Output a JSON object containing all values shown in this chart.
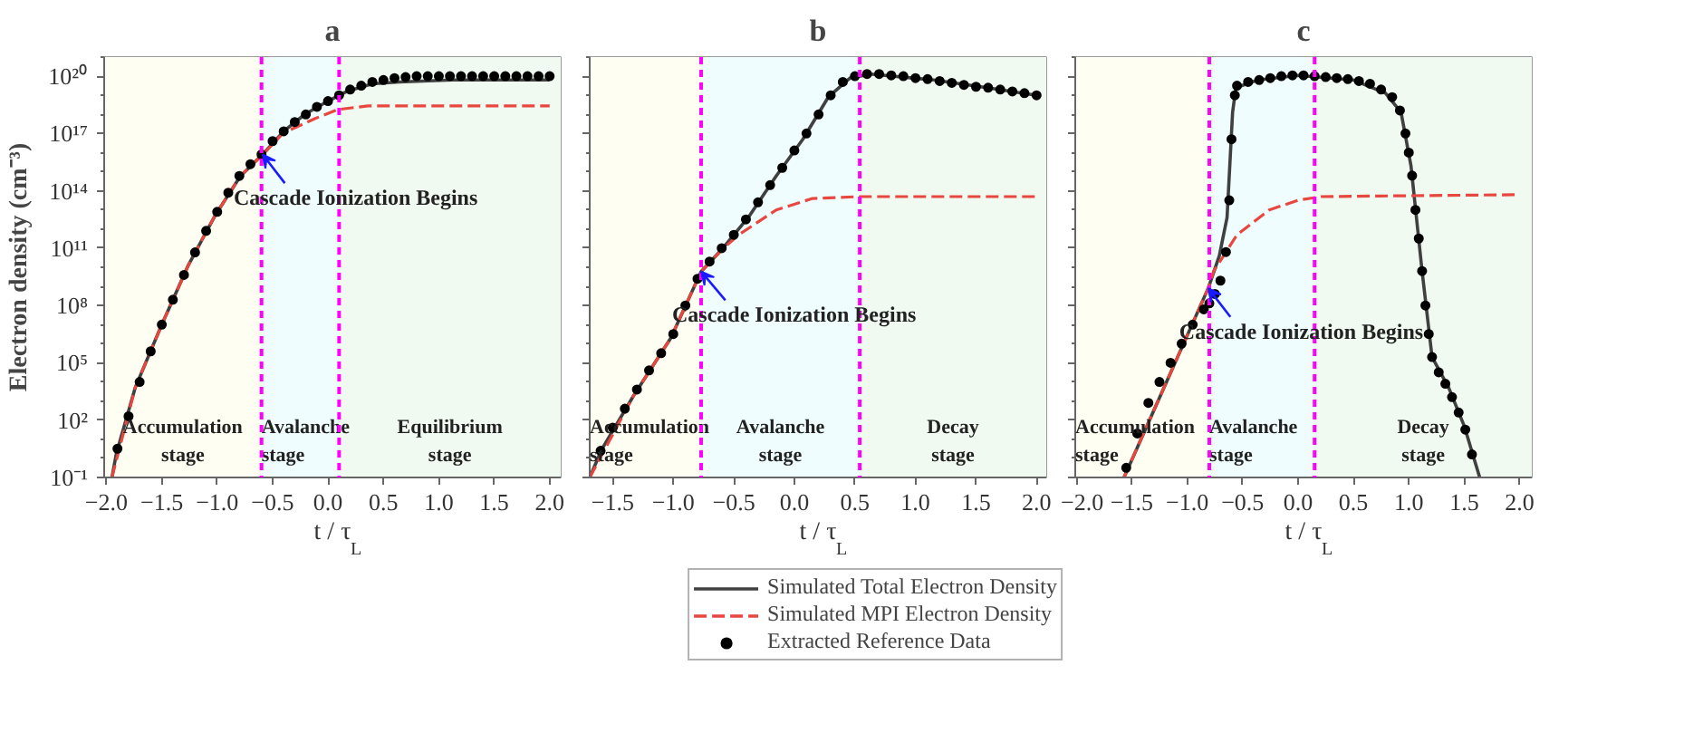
{
  "chart_data": [
    {
      "type": "line",
      "title": "a",
      "xlabel": "t / τ$_{L}$",
      "ylabel": "Electron density (cm⁻³)",
      "log": "y",
      "xlim": [
        -2.02,
        2.1
      ],
      "ylim": [
        0.1,
        1e+21
      ],
      "xticks": [
        {
          "value": -2,
          "label": "−2.0"
        },
        {
          "value": -1.5,
          "label": "−1.5"
        },
        {
          "value": -1,
          "label": "−1.0"
        },
        {
          "value": -0.5,
          "label": "−0.5"
        },
        {
          "value": 0,
          "label": "0.0"
        },
        {
          "value": 0.5,
          "label": "0.5"
        },
        {
          "value": 1,
          "label": "1.0"
        },
        {
          "value": 1.5,
          "label": "1.5"
        },
        {
          "value": 2,
          "label": "2.0"
        }
      ],
      "yticks": [
        {
          "value": 0.1,
          "label": "10⁻¹"
        },
        {
          "value": 100,
          "label": "10²"
        },
        {
          "value": 100000.0,
          "label": "10⁵"
        },
        {
          "value": 100000000.0,
          "label": "10⁸"
        },
        {
          "value": 100000000000.0,
          "label": "10¹¹"
        },
        {
          "value": 100000000000000.0,
          "label": "10¹⁴"
        },
        {
          "value": 1e+17,
          "label": "10¹⁷"
        },
        {
          "value": 1e+20,
          "label": "10²⁰"
        }
      ],
      "bands": [
        {
          "axis": "x",
          "from": -2.02,
          "to": -0.6,
          "label": "Accumulation\nstage",
          "color": "#fffef2"
        },
        {
          "axis": "x",
          "from": -0.6,
          "to": 0.1,
          "label": "Avalanche\nstage",
          "color": "#effdfe"
        },
        {
          "axis": "x",
          "from": 0.1,
          "to": 2.1,
          "label": "Equilibrium\nstage",
          "color": "#f1faf0"
        }
      ],
      "ref_lines": [
        {
          "axis": "x",
          "value": -0.6,
          "color": "#ff00ff",
          "line_style": "dashed"
        },
        {
          "axis": "x",
          "value": 0.1,
          "color": "#ff00ff",
          "line_style": "dashed"
        }
      ],
      "annotations": [
        {
          "text": "Cascade Ionization Begins",
          "x": -0.59,
          "y": 8000000000000000.0
        }
      ],
      "series": [
        {
          "type": "line",
          "color": "#404040",
          "line_style": "solid",
          "x": [
            -1.95,
            -1.91,
            -1.74,
            -1.5,
            -1.26,
            -1.02,
            -0.79,
            -0.59,
            -0.4,
            -0.21,
            0,
            0.17,
            0.4,
            0.64,
            1.12,
            2.0
          ],
          "values": [
            0.1,
            1.8,
            5000.0,
            10000000.0,
            13000000000.0,
            5000000000000.0,
            600000000000000.0,
            8000000000000000.0,
            1.3e+17,
            1e+18,
            5e+18,
            1.6e+19,
            4e+19,
            5e+19,
            6.3e+19,
            6.3e+19
          ]
        },
        {
          "type": "line",
          "color": "#e8473f",
          "line_style": "dashed",
          "x": [
            -1.95,
            -1.74,
            -1.5,
            -1.26,
            -1.02,
            -0.79,
            -0.59,
            -0.4,
            -0.3,
            -0.12,
            0.09,
            0.36,
            2.0
          ],
          "values": [
            0.1,
            5000.0,
            10000000.0,
            13000000000.0,
            5000000000000.0,
            600000000000000.0,
            8000000000000000.0,
            1.1e+17,
            2e+17,
            6e+17,
            1.8e+18,
            2.8e+18,
            2.8e+18
          ]
        },
        {
          "type": "scatter",
          "color": "#000000",
          "marker": "circle",
          "x": [
            -1.9,
            -1.8,
            -1.7,
            -1.6,
            -1.5,
            -1.4,
            -1.3,
            -1.2,
            -1.1,
            -1.0,
            -0.9,
            -0.8,
            -0.7,
            -0.6,
            -0.5,
            -0.4,
            -0.3,
            -0.2,
            -0.1,
            0,
            0.1,
            0.2,
            0.3,
            0.4,
            0.5,
            0.6,
            0.7,
            0.8,
            0.9,
            1.0,
            1.1,
            1.2,
            1.3,
            1.4,
            1.5,
            1.6,
            1.7,
            1.8,
            1.9,
            2.0
          ],
          "values": [
            3.2,
            160,
            10000.0,
            400000.0,
            10000000.0,
            200000000.0,
            4000000000.0,
            60000000000.0,
            800000000000.0,
            8000000000000.0,
            80000000000000.0,
            600000000000000.0,
            2500000000000000.0,
            8000000000000000.0,
            4e+16,
            1.3e+17,
            4e+17,
            1e+18,
            2.5e+18,
            5e+18,
            1e+19,
            2e+19,
            3.2e+19,
            5e+19,
            6.3e+19,
            8e+19,
            9e+19,
            1e+20,
            1e+20,
            1e+20,
            1e+20,
            1e+20,
            1e+20,
            1e+20,
            1e+20,
            1e+20,
            1e+20,
            1e+20,
            1e+20,
            1e+20
          ]
        }
      ]
    },
    {
      "type": "line",
      "title": "b",
      "xlabel": "t / τ$_{L}$",
      "log": "y",
      "tick_labels": "x",
      "xlim": [
        -1.69,
        2.08
      ],
      "ylim": [
        0.1,
        1e+21
      ],
      "legend": "bottom",
      "xticks": [
        {
          "value": -1.5,
          "label": "−1.5"
        },
        {
          "value": -1,
          "label": "−1.0"
        },
        {
          "value": -0.5,
          "label": "−0.5"
        },
        {
          "value": 0,
          "label": "0.0"
        },
        {
          "value": 0.5,
          "label": "0.5"
        },
        {
          "value": 1,
          "label": "1.0"
        },
        {
          "value": 1.5,
          "label": "1.5"
        },
        {
          "value": 2,
          "label": "2.0"
        }
      ],
      "yticks": [
        {
          "value": 0.1,
          "label": null
        },
        {
          "value": 100,
          "label": null
        },
        {
          "value": 100000.0,
          "label": null
        },
        {
          "value": 100000000.0,
          "label": null
        },
        {
          "value": 100000000000.0,
          "label": null
        },
        {
          "value": 100000000000000.0,
          "label": null
        },
        {
          "value": 1e+17,
          "label": null
        },
        {
          "value": 1e+20,
          "label": null
        }
      ],
      "bands": [
        {
          "axis": "x",
          "from": -1.69,
          "to": -0.77,
          "label": "Accumulation\nstage",
          "color": "#fffef2"
        },
        {
          "axis": "x",
          "from": -0.77,
          "to": 0.54,
          "label": "Avalanche\nstage",
          "color": "#effdfe"
        },
        {
          "axis": "x",
          "from": 0.54,
          "to": 2.08,
          "label": "Decay\nstage",
          "color": "#f1faf0"
        }
      ],
      "ref_lines": [
        {
          "axis": "x",
          "value": -0.77,
          "color": "#ff00ff",
          "line_style": "dashed"
        },
        {
          "axis": "x",
          "value": 0.54,
          "color": "#ff00ff",
          "line_style": "dashed"
        }
      ],
      "annotations": [
        {
          "text": "Cascade Ionization Begins",
          "x": -0.77,
          "y": 6000000000.0
        }
      ],
      "series": [
        {
          "type": "line",
          "name": "Simulated Total Electron Density",
          "color": "#404040",
          "line_style": "solid",
          "x": [
            -1.69,
            -1.59,
            -1.33,
            -1.02,
            -0.77,
            -0.59,
            -0.37,
            -0.15,
            0.07,
            0.28,
            0.46,
            0.63,
            1.15,
            1.59,
            2.0
          ],
          "values": [
            0.1,
            3,
            1800.0,
            2000000.0,
            6000000000.0,
            100000000000.0,
            5000000000000.0,
            600000000000000.0,
            5e+16,
            8e+18,
            8e+19,
            1.3e+20,
            6.3e+19,
            2.5e+19,
            1e+19
          ]
        },
        {
          "type": "line",
          "name": "Simulated MPI Electron Density",
          "color": "#e8473f",
          "line_style": "dashed",
          "x": [
            -1.69,
            -1.33,
            -1.02,
            -0.77,
            -0.6,
            -0.46,
            -0.15,
            0.15,
            0.54,
            2.0
          ],
          "values": [
            0.1,
            1800.0,
            2000000.0,
            6000000000.0,
            80000000000.0,
            500000000000.0,
            10000000000000.0,
            40000000000000.0,
            50000000000000.0,
            50000000000000.0
          ]
        },
        {
          "type": "scatter",
          "name": "Extracted Reference Data",
          "color": "#000000",
          "marker": "circle",
          "x": [
            -1.6,
            -1.5,
            -1.4,
            -1.3,
            -1.2,
            -1.1,
            -1.0,
            -0.9,
            -0.8,
            -0.7,
            -0.6,
            -0.5,
            -0.4,
            -0.3,
            -0.2,
            -0.1,
            0,
            0.1,
            0.2,
            0.3,
            0.4,
            0.5,
            0.6,
            0.7,
            0.8,
            0.9,
            1.0,
            1.1,
            1.2,
            1.3,
            1.4,
            1.5,
            1.6,
            1.7,
            1.8,
            1.9,
            2.0
          ],
          "values": [
            2.5,
            40,
            400,
            4000.0,
            40000.0,
            320000.0,
            3200000.0,
            100000000.0,
            2500000000.0,
            20000000000.0,
            100000000000.0,
            500000000000.0,
            3200000000000.0,
            25000000000000.0,
            200000000000000.0,
            1600000000000000.0,
            1.3e+16,
            1e+17,
            1e+18,
            1e+19,
            5e+19,
            1e+20,
            1.3e+20,
            1.3e+20,
            1.1e+20,
            1e+20,
            8e+19,
            7e+19,
            5.6e+19,
            4.5e+19,
            3.5e+19,
            2.8e+19,
            2.5e+19,
            2e+19,
            1.6e+19,
            1.3e+19,
            1e+19
          ]
        }
      ]
    },
    {
      "type": "line",
      "title": "c",
      "xlabel": "t / τ$_{L}$",
      "log": "y",
      "tick_labels": "x",
      "xlim": [
        -2.01,
        2.11
      ],
      "ylim": [
        0.1,
        1e+21
      ],
      "xticks": [
        {
          "value": -2,
          "label": "−2.0"
        },
        {
          "value": -1.5,
          "label": "−1.5"
        },
        {
          "value": -1,
          "label": "−1.0"
        },
        {
          "value": -0.5,
          "label": "−0.5"
        },
        {
          "value": 0,
          "label": "0.0"
        },
        {
          "value": 0.5,
          "label": "0.5"
        },
        {
          "value": 1,
          "label": "1.0"
        },
        {
          "value": 1.5,
          "label": "1.5"
        },
        {
          "value": 2,
          "label": "2.0"
        }
      ],
      "yticks": [
        {
          "value": 0.1,
          "label": null
        },
        {
          "value": 100,
          "label": null
        },
        {
          "value": 100000.0,
          "label": null
        },
        {
          "value": 100000000.0,
          "label": null
        },
        {
          "value": 100000000000.0,
          "label": null
        },
        {
          "value": 100000000000000.0,
          "label": null
        },
        {
          "value": 1e+17,
          "label": null
        },
        {
          "value": 1e+20,
          "label": null
        }
      ],
      "bands": [
        {
          "axis": "x",
          "from": -2.01,
          "to": -0.8,
          "label": "Accumulation\nstage",
          "color": "#fffef2"
        },
        {
          "axis": "x",
          "from": -0.8,
          "to": 0.15,
          "label": "Avalanche\nstage",
          "color": "#effdfe"
        },
        {
          "axis": "x",
          "from": 0.15,
          "to": 2.11,
          "label": "Decay\nstage",
          "color": "#f1faf0"
        }
      ],
      "ref_lines": [
        {
          "axis": "x",
          "value": -0.8,
          "color": "#ff00ff",
          "line_style": "dashed"
        },
        {
          "axis": "x",
          "value": 0.15,
          "color": "#ff00ff",
          "line_style": "dashed"
        }
      ],
      "annotations": [
        {
          "text": "Cascade Ionization Begins",
          "x": -0.81,
          "y": 800000000.0
        }
      ],
      "series": [
        {
          "type": "line",
          "color": "#404040",
          "line_style": "solid",
          "x": [
            -1.57,
            -0.81,
            -0.71,
            -0.64,
            -0.59,
            -0.56,
            -0.36,
            0,
            0.5,
            0.79,
            0.93,
            1.02,
            1.12,
            1.21,
            1.36,
            1.5,
            1.64
          ],
          "values": [
            0.1,
            800000000.0,
            40000000000.0,
            4000000000000.0,
            1.3e+18,
            2.5e+19,
            6.3e+19,
            1.1e+20,
            6.3e+19,
            1.3e+19,
            1.3e+18,
            2000000000000000.0,
            6300000000.0,
            200000.0,
            5000.0,
            50,
            0.1
          ]
        },
        {
          "type": "line",
          "color": "#e8473f",
          "line_style": "dashed",
          "x": [
            -1.57,
            -0.81,
            -0.76,
            -0.55,
            -0.26,
            0,
            0.21,
            2.0
          ],
          "values": [
            0.1,
            800000000.0,
            6300000000.0,
            500000000000.0,
            10000000000000.0,
            32000000000000.0,
            50000000000000.0,
            63000000000000.0
          ]
        },
        {
          "type": "scatter",
          "color": "#000000",
          "marker": "circle",
          "x": [
            -1.55,
            -1.45,
            -1.35,
            -1.25,
            -1.15,
            -1.05,
            -0.95,
            -0.85,
            -0.8,
            -0.75,
            -0.7,
            -0.65,
            -0.62,
            -0.6,
            -0.57,
            -0.55,
            -0.45,
            -0.35,
            -0.25,
            -0.15,
            -0.05,
            0.05,
            0.15,
            0.25,
            0.35,
            0.45,
            0.55,
            0.65,
            0.75,
            0.85,
            0.92,
            0.97,
            1.0,
            1.03,
            1.06,
            1.09,
            1.12,
            1.15,
            1.18,
            1.21,
            1.27,
            1.33,
            1.39,
            1.45,
            1.51,
            1.57
          ],
          "values": [
            0.32,
            20,
            800,
            10000.0,
            100000.0,
            1000000.0,
            10000000.0,
            63000000.0,
            130000000.0,
            400000000.0,
            2000000000.0,
            63000000000.0,
            32000000000000.0,
            5e+16,
            1e+19,
            3.2e+19,
            5e+19,
            6.3e+19,
            8e+19,
            1e+20,
            1.1e+20,
            1.1e+20,
            1e+20,
            9e+19,
            8e+19,
            7e+19,
            5.6e+19,
            4e+19,
            2e+19,
            8e+18,
            1.6e+18,
            1e+17,
            1e+16,
            630000000000000.0,
            10000000000000.0,
            320000000000.0,
            6300000000.0,
            100000000.0,
            3200000.0,
            200000.0,
            32000.0,
            8000.0,
            1600.0,
            250,
            32,
            1.6
          ]
        }
      ]
    }
  ]
}
